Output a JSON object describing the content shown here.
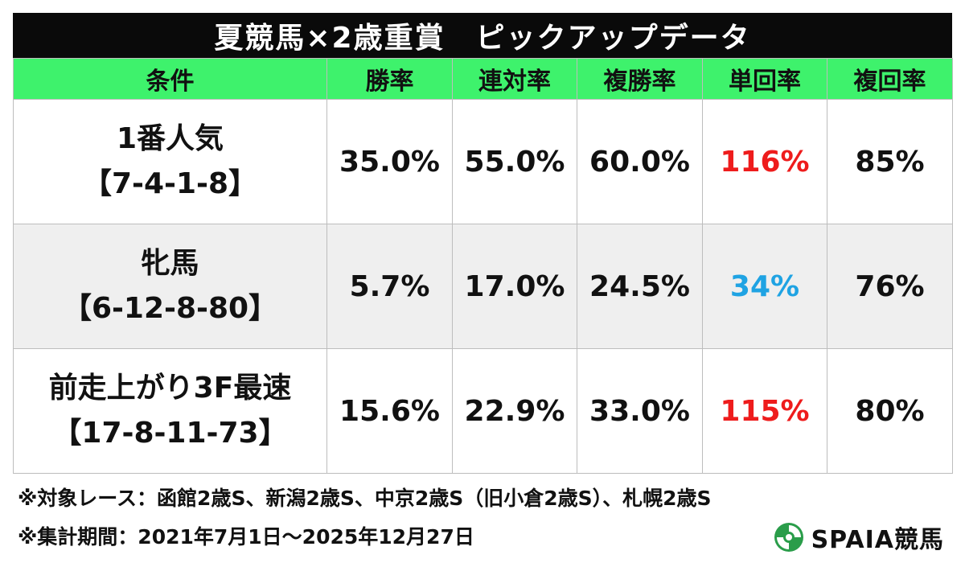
{
  "title": "夏競馬×2歳重賞　ピックアップデータ",
  "table": {
    "headers": [
      "条件",
      "勝率",
      "連対率",
      "複勝率",
      "単回率",
      "複回率"
    ],
    "rows": [
      {
        "condition": "1番人気",
        "record": "【7-4-1-8】",
        "win_rate": "35.0%",
        "place_rate": "55.0%",
        "show_rate": "60.0%",
        "win_return": "116%",
        "win_return_color": "red",
        "show_return": "85%"
      },
      {
        "condition": "牝馬",
        "record": "【6-12-8-80】",
        "win_rate": "5.7%",
        "place_rate": "17.0%",
        "show_rate": "24.5%",
        "win_return": "34%",
        "win_return_color": "blue",
        "show_return": "76%"
      },
      {
        "condition": "前走上がり3F最速",
        "record": "【17-8-11-73】",
        "win_rate": "15.6%",
        "place_rate": "22.9%",
        "show_rate": "33.0%",
        "win_return": "115%",
        "win_return_color": "red",
        "show_return": "80%"
      }
    ]
  },
  "notes": {
    "target_races": "※対象レース：函館2歳S、新潟2歳S、中京2歳S（旧小倉2歳S）、札幌2歳S",
    "period": "※集計期間：2021年7月1日～2025年12月27日"
  },
  "logo": {
    "icon": "spaia-logo-icon",
    "text": "SPAIA競馬"
  },
  "colors": {
    "title_bg": "#0a0a0a",
    "header_bg": "#3ef26c",
    "shaded_row_bg": "#efefef",
    "highlight_red": "#ee1c1c",
    "highlight_blue": "#1fa3e3"
  }
}
